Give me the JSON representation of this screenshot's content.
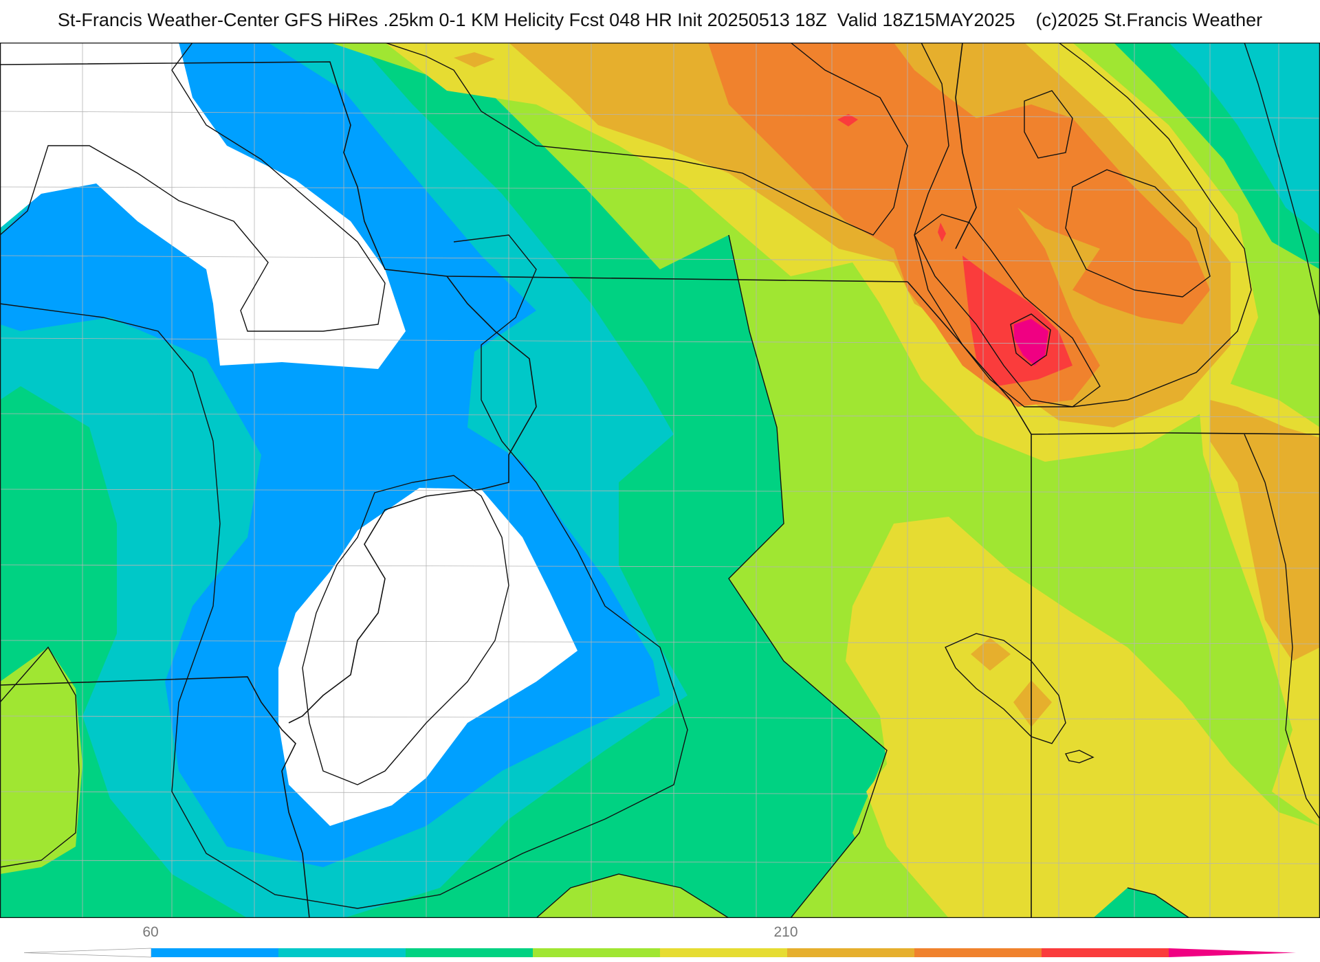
{
  "title": "St-Francis Weather-Center GFS HiRes .25km 0-1 KM Helicity Fcst 048 HR Init 20250513 18Z  Valid 18Z15MAY2025    (c)2025 St.Francis Weather",
  "colorbar": {
    "label_low": "60",
    "label_high": "210",
    "colors": [
      "#ffffff",
      "#00a0ff",
      "#00c8c8",
      "#00d282",
      "#a0e632",
      "#e6dc32",
      "#e6af2d",
      "#f0822d",
      "#fa3c3c",
      "#f00082"
    ]
  },
  "palette": {
    "white": "#ffffff",
    "blue": "#00a0ff",
    "cyan": "#00c8c8",
    "green": "#00d282",
    "lime": "#a0e632",
    "yellow": "#e6dc32",
    "gold": "#e6af2d",
    "orange": "#f0822d",
    "red": "#fa3c3c",
    "magenta": "#f00082"
  }
}
